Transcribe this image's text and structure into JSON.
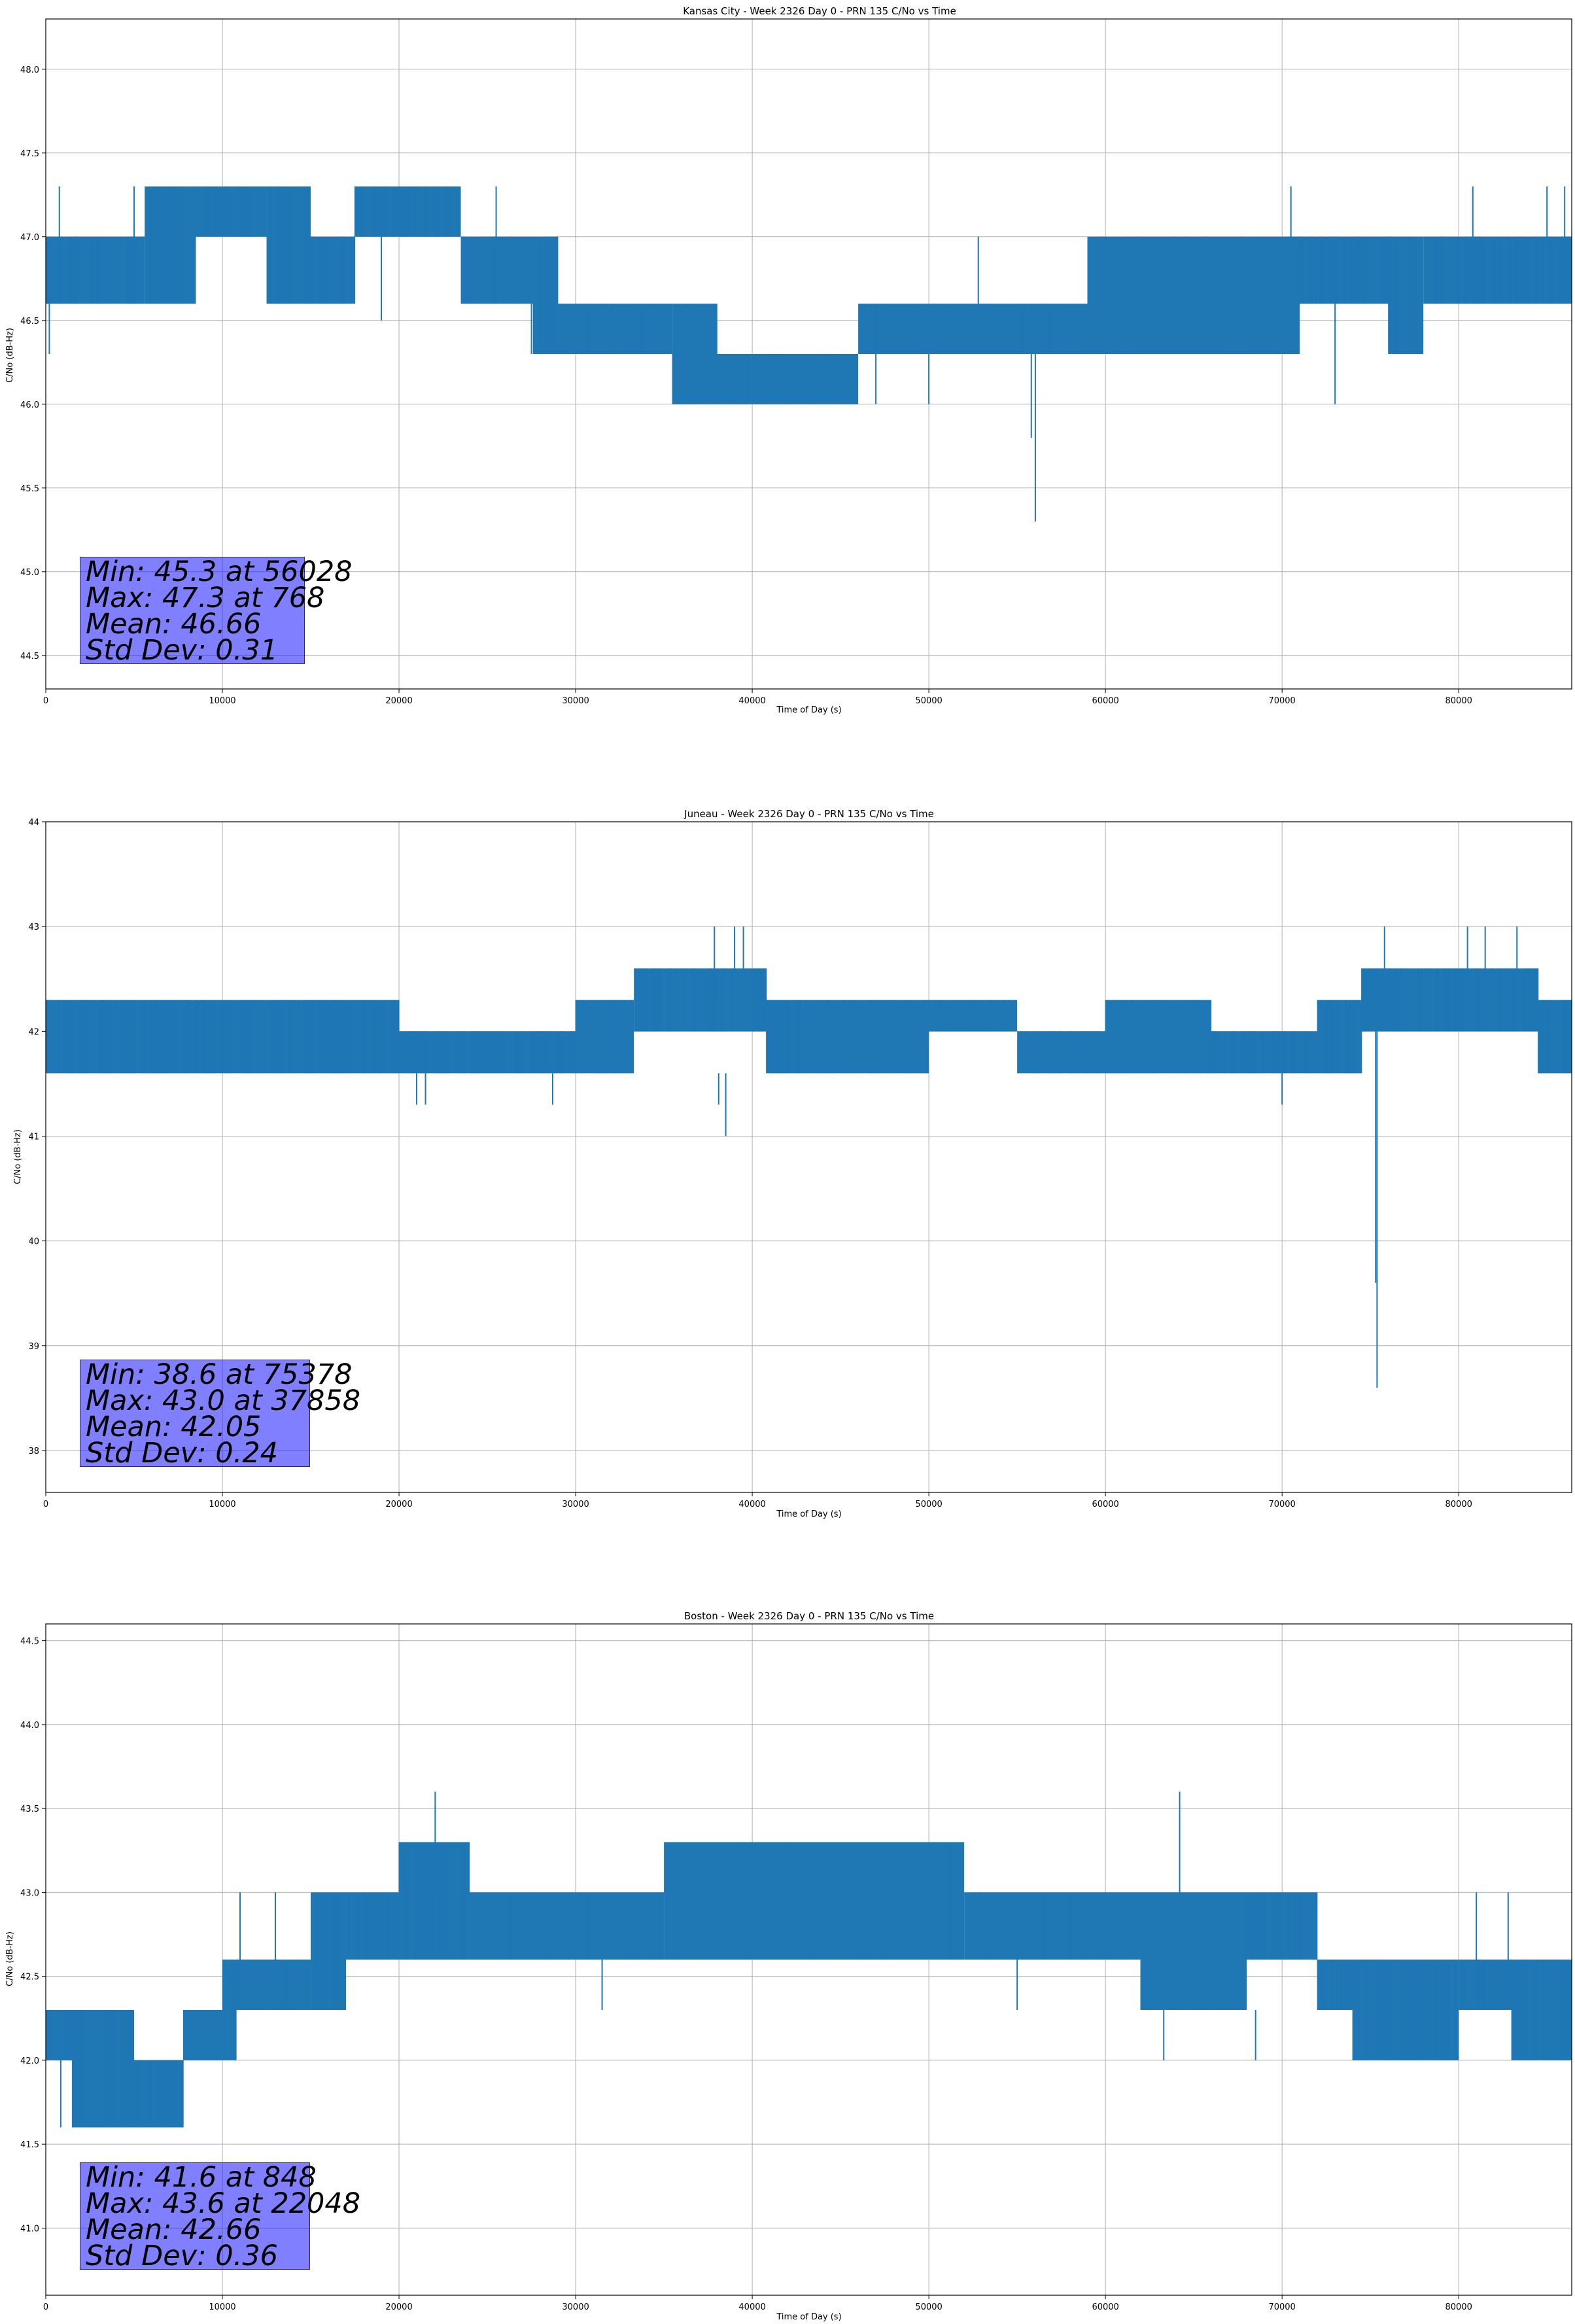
{
  "chart_data": [
    {
      "type": "line",
      "title": "Kansas City - Week 2326 Day 0 - PRN 135 C/No vs Time",
      "xlabel": "Time of Day (s)",
      "ylabel": "C/No (dB-Hz)",
      "xlim": [
        0,
        86400
      ],
      "ylim": [
        44.3,
        48.3
      ],
      "xticks": [
        0,
        10000,
        20000,
        30000,
        40000,
        50000,
        60000,
        70000,
        80000
      ],
      "yticks": [
        44.5,
        45.0,
        45.5,
        46.0,
        46.5,
        47.0,
        47.5,
        48.0
      ],
      "ytick_decimals": 1,
      "grid": true,
      "series_color": "#1f77b4",
      "segments": [
        {
          "x0": 0,
          "x1": 5600,
          "lo": 46.6,
          "hi": 47.0
        },
        {
          "x0": 5600,
          "x1": 8500,
          "lo": 46.6,
          "hi": 47.3
        },
        {
          "x0": 8500,
          "x1": 12500,
          "lo": 47.0,
          "hi": 47.3
        },
        {
          "x0": 12500,
          "x1": 15000,
          "lo": 46.6,
          "hi": 47.3
        },
        {
          "x0": 15000,
          "x1": 17500,
          "lo": 46.6,
          "hi": 47.0
        },
        {
          "x0": 17500,
          "x1": 23500,
          "lo": 47.0,
          "hi": 47.3
        },
        {
          "x0": 23500,
          "x1": 27600,
          "lo": 46.6,
          "hi": 47.0
        },
        {
          "x0": 27600,
          "x1": 29000,
          "lo": 46.3,
          "hi": 47.0
        },
        {
          "x0": 29000,
          "x1": 35500,
          "lo": 46.3,
          "hi": 46.6
        },
        {
          "x0": 35500,
          "x1": 38000,
          "lo": 46.0,
          "hi": 46.6
        },
        {
          "x0": 38000,
          "x1": 46000,
          "lo": 46.0,
          "hi": 46.3
        },
        {
          "x0": 46000,
          "x1": 48500,
          "lo": 46.3,
          "hi": 46.6
        },
        {
          "x0": 48500,
          "x1": 59000,
          "lo": 46.3,
          "hi": 46.6
        },
        {
          "x0": 59000,
          "x1": 71000,
          "lo": 46.3,
          "hi": 47.0
        },
        {
          "x0": 71000,
          "x1": 76000,
          "lo": 46.6,
          "hi": 47.0
        },
        {
          "x0": 76000,
          "x1": 78000,
          "lo": 46.3,
          "hi": 47.0
        },
        {
          "x0": 78000,
          "x1": 86400,
          "lo": 46.6,
          "hi": 47.0
        }
      ],
      "spikes": [
        {
          "x": 200,
          "lo": 46.3,
          "hi": 47.0
        },
        {
          "x": 768,
          "lo": 46.6,
          "hi": 47.3
        },
        {
          "x": 5000,
          "lo": 46.6,
          "hi": 47.3
        },
        {
          "x": 19000,
          "lo": 46.5,
          "hi": 47.0
        },
        {
          "x": 25500,
          "lo": 46.6,
          "hi": 47.3
        },
        {
          "x": 27500,
          "lo": 46.3,
          "hi": 46.6
        },
        {
          "x": 35500,
          "lo": 46.0,
          "hi": 46.3
        },
        {
          "x": 36500,
          "lo": 46.0,
          "hi": 46.3
        },
        {
          "x": 47000,
          "lo": 46.0,
          "hi": 46.6
        },
        {
          "x": 50000,
          "lo": 46.0,
          "hi": 46.3
        },
        {
          "x": 52800,
          "lo": 46.6,
          "hi": 47.0
        },
        {
          "x": 55800,
          "lo": 45.8,
          "hi": 46.6
        },
        {
          "x": 56028,
          "lo": 45.3,
          "hi": 46.6
        },
        {
          "x": 70500,
          "lo": 46.6,
          "hi": 47.3
        },
        {
          "x": 73000,
          "lo": 46.0,
          "hi": 46.6
        },
        {
          "x": 80800,
          "lo": 46.6,
          "hi": 47.3
        },
        {
          "x": 85000,
          "lo": 46.6,
          "hi": 47.3
        },
        {
          "x": 86000,
          "lo": 46.6,
          "hi": 47.3
        }
      ],
      "stats": {
        "min_text": "Min: 45.3 at 56028",
        "max_text": "Max: 47.3 at 768",
        "mean_text": "Mean: 46.66",
        "std_text": "Std Dev: 0.31"
      }
    },
    {
      "type": "line",
      "title": "Juneau - Week 2326 Day 0 - PRN 135 C/No vs Time",
      "xlabel": "Time of Day (s)",
      "ylabel": "C/No (dB-Hz)",
      "xlim": [
        0,
        86400
      ],
      "ylim": [
        37.6,
        44.0
      ],
      "xticks": [
        0,
        10000,
        20000,
        30000,
        40000,
        50000,
        60000,
        70000,
        80000
      ],
      "yticks": [
        38,
        39,
        40,
        41,
        42,
        43,
        44
      ],
      "ytick_decimals": 0,
      "grid": true,
      "series_color": "#1f77b4",
      "segments": [
        {
          "x0": 0,
          "x1": 20000,
          "lo": 41.6,
          "hi": 42.3
        },
        {
          "x0": 20000,
          "x1": 30000,
          "lo": 41.6,
          "hi": 42.0
        },
        {
          "x0": 30000,
          "x1": 33300,
          "lo": 41.6,
          "hi": 42.3
        },
        {
          "x0": 33300,
          "x1": 40800,
          "lo": 42.0,
          "hi": 42.6
        },
        {
          "x0": 40800,
          "x1": 43000,
          "lo": 41.6,
          "hi": 42.3
        },
        {
          "x0": 43000,
          "x1": 50000,
          "lo": 41.6,
          "hi": 42.3
        },
        {
          "x0": 50000,
          "x1": 55000,
          "lo": 42.0,
          "hi": 42.3
        },
        {
          "x0": 55000,
          "x1": 60000,
          "lo": 41.6,
          "hi": 42.0
        },
        {
          "x0": 60000,
          "x1": 66000,
          "lo": 41.6,
          "hi": 42.3
        },
        {
          "x0": 66000,
          "x1": 72000,
          "lo": 41.6,
          "hi": 42.0
        },
        {
          "x0": 72000,
          "x1": 74500,
          "lo": 41.6,
          "hi": 42.3
        },
        {
          "x0": 74500,
          "x1": 84500,
          "lo": 42.0,
          "hi": 42.6
        },
        {
          "x0": 84500,
          "x1": 86400,
          "lo": 41.6,
          "hi": 42.3
        }
      ],
      "spikes": [
        {
          "x": 21000,
          "lo": 41.3,
          "hi": 41.6
        },
        {
          "x": 21500,
          "lo": 41.3,
          "hi": 41.6
        },
        {
          "x": 28700,
          "lo": 41.3,
          "hi": 41.6
        },
        {
          "x": 37858,
          "lo": 42.3,
          "hi": 43.0
        },
        {
          "x": 38100,
          "lo": 41.3,
          "hi": 41.6
        },
        {
          "x": 38500,
          "lo": 41.0,
          "hi": 41.6
        },
        {
          "x": 39000,
          "lo": 42.3,
          "hi": 43.0
        },
        {
          "x": 39500,
          "lo": 42.3,
          "hi": 43.0
        },
        {
          "x": 70000,
          "lo": 41.3,
          "hi": 41.6
        },
        {
          "x": 75300,
          "lo": 39.6,
          "hi": 42.0
        },
        {
          "x": 75378,
          "lo": 38.6,
          "hi": 42.0
        },
        {
          "x": 75800,
          "lo": 42.3,
          "hi": 43.0
        },
        {
          "x": 80500,
          "lo": 42.3,
          "hi": 43.0
        },
        {
          "x": 81500,
          "lo": 42.3,
          "hi": 43.0
        },
        {
          "x": 83300,
          "lo": 42.3,
          "hi": 43.0
        }
      ],
      "stats": {
        "min_text": "Min: 38.6 at 75378",
        "max_text": "Max: 43.0 at 37858",
        "mean_text": "Mean: 42.05",
        "std_text": "Std Dev: 0.24"
      }
    },
    {
      "type": "line",
      "title": "Boston - Week 2326 Day 0 - PRN 135 C/No vs Time",
      "xlabel": "Time of Day (s)",
      "ylabel": "C/No (dB-Hz)",
      "xlim": [
        0,
        86400
      ],
      "ylim": [
        40.6,
        44.6
      ],
      "xticks": [
        0,
        10000,
        20000,
        30000,
        40000,
        50000,
        60000,
        70000,
        80000
      ],
      "yticks": [
        41.0,
        41.5,
        42.0,
        42.5,
        43.0,
        43.5,
        44.0,
        44.5
      ],
      "ytick_decimals": 1,
      "grid": true,
      "series_color": "#1f77b4",
      "segments": [
        {
          "x0": 0,
          "x1": 1500,
          "lo": 42.0,
          "hi": 42.3
        },
        {
          "x0": 1500,
          "x1": 5000,
          "lo": 41.6,
          "hi": 42.3
        },
        {
          "x0": 5000,
          "x1": 7800,
          "lo": 41.6,
          "hi": 42.0
        },
        {
          "x0": 7800,
          "x1": 10000,
          "lo": 42.0,
          "hi": 42.3
        },
        {
          "x0": 10000,
          "x1": 10800,
          "lo": 42.0,
          "hi": 42.6
        },
        {
          "x0": 10800,
          "x1": 15000,
          "lo": 42.3,
          "hi": 42.6
        },
        {
          "x0": 15000,
          "x1": 17000,
          "lo": 42.3,
          "hi": 43.0
        },
        {
          "x0": 17000,
          "x1": 20000,
          "lo": 42.6,
          "hi": 43.0
        },
        {
          "x0": 20000,
          "x1": 24000,
          "lo": 42.6,
          "hi": 43.3
        },
        {
          "x0": 24000,
          "x1": 35000,
          "lo": 42.6,
          "hi": 43.0
        },
        {
          "x0": 35000,
          "x1": 52000,
          "lo": 42.6,
          "hi": 43.3
        },
        {
          "x0": 52000,
          "x1": 62000,
          "lo": 42.6,
          "hi": 43.0
        },
        {
          "x0": 62000,
          "x1": 68000,
          "lo": 42.3,
          "hi": 43.0
        },
        {
          "x0": 68000,
          "x1": 72000,
          "lo": 42.6,
          "hi": 43.0
        },
        {
          "x0": 72000,
          "x1": 74000,
          "lo": 42.3,
          "hi": 42.6
        },
        {
          "x0": 74000,
          "x1": 80000,
          "lo": 42.0,
          "hi": 42.6
        },
        {
          "x0": 80000,
          "x1": 83000,
          "lo": 42.3,
          "hi": 42.6
        },
        {
          "x0": 83000,
          "x1": 86400,
          "lo": 42.0,
          "hi": 42.6
        }
      ],
      "spikes": [
        {
          "x": 848,
          "lo": 41.6,
          "hi": 42.0
        },
        {
          "x": 7500,
          "lo": 41.6,
          "hi": 42.0
        },
        {
          "x": 11000,
          "lo": 42.6,
          "hi": 43.0
        },
        {
          "x": 13000,
          "lo": 42.6,
          "hi": 43.0
        },
        {
          "x": 22048,
          "lo": 43.0,
          "hi": 43.6
        },
        {
          "x": 31500,
          "lo": 42.3,
          "hi": 42.6
        },
        {
          "x": 55000,
          "lo": 42.3,
          "hi": 42.6
        },
        {
          "x": 63300,
          "lo": 42.0,
          "hi": 42.3
        },
        {
          "x": 64200,
          "lo": 43.0,
          "hi": 43.6
        },
        {
          "x": 68500,
          "lo": 42.0,
          "hi": 42.3
        },
        {
          "x": 81000,
          "lo": 42.6,
          "hi": 43.0
        },
        {
          "x": 82800,
          "lo": 42.6,
          "hi": 43.0
        }
      ],
      "stats": {
        "min_text": "Min: 41.6 at 848",
        "max_text": "Max: 43.6 at 22048",
        "mean_text": "Mean: 42.66",
        "std_text": "Std Dev: 0.36"
      }
    }
  ]
}
